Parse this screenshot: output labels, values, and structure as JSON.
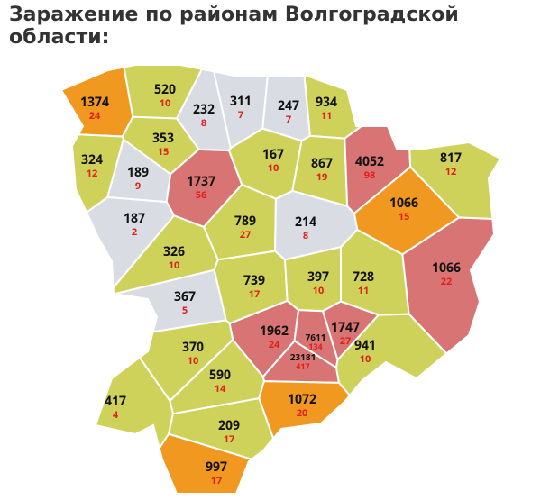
{
  "title": "Заражение по районам Волгоградской области:",
  "districts": [
    {
      "cases": 1374,
      "deaths": 24,
      "color": "#f0981f"
    },
    {
      "cases": 520,
      "deaths": 10,
      "color": "#cfd25a"
    },
    {
      "cases": 232,
      "deaths": 8,
      "color": "#d9dce3"
    },
    {
      "cases": 311,
      "deaths": 7,
      "color": "#d9dce3"
    },
    {
      "cases": 247,
      "deaths": 7,
      "color": "#d9dce3"
    },
    {
      "cases": 934,
      "deaths": 11,
      "color": "#cfd25a"
    },
    {
      "cases": 353,
      "deaths": 15,
      "color": "#cfd25a"
    },
    {
      "cases": 324,
      "deaths": 12,
      "color": "#cfd25a"
    },
    {
      "cases": 189,
      "deaths": 9,
      "color": "#d9dce3"
    },
    {
      "cases": 1737,
      "deaths": 56,
      "color": "#d97474"
    },
    {
      "cases": 167,
      "deaths": 10,
      "color": "#cfd25a"
    },
    {
      "cases": 867,
      "deaths": 19,
      "color": "#cfd25a"
    },
    {
      "cases": 4052,
      "deaths": 98,
      "color": "#d97474"
    },
    {
      "cases": 817,
      "deaths": 12,
      "color": "#cfd25a"
    },
    {
      "cases": 187,
      "deaths": 2,
      "color": "#d9dce3"
    },
    {
      "cases": 1066,
      "deaths": 15,
      "color": "#f0981f"
    },
    {
      "cases": 789,
      "deaths": 27,
      "color": "#cfd25a"
    },
    {
      "cases": 214,
      "deaths": 8,
      "color": "#d9dce3"
    },
    {
      "cases": 326,
      "deaths": 10,
      "color": "#cfd25a"
    },
    {
      "cases": 1066,
      "deaths": 22,
      "color": "#d97474"
    },
    {
      "cases": 739,
      "deaths": 17,
      "color": "#cfd25a"
    },
    {
      "cases": 397,
      "deaths": 10,
      "color": "#cfd25a"
    },
    {
      "cases": 728,
      "deaths": 11,
      "color": "#cfd25a"
    },
    {
      "cases": 367,
      "deaths": 5,
      "color": "#d9dce3"
    },
    {
      "cases": 1962,
      "deaths": 24,
      "color": "#d97474"
    },
    {
      "cases": 7611,
      "deaths": 134,
      "color": "#d97474"
    },
    {
      "cases": 1747,
      "deaths": 27,
      "color": "#d97474"
    },
    {
      "cases": 941,
      "deaths": 10,
      "color": "#cfd25a"
    },
    {
      "cases": 370,
      "deaths": 10,
      "color": "#cfd25a"
    },
    {
      "cases": 23181,
      "deaths": 417,
      "color": "#d97474"
    },
    {
      "cases": 590,
      "deaths": 14,
      "color": "#cfd25a"
    },
    {
      "cases": 417,
      "deaths": 4,
      "color": "#cfd25a"
    },
    {
      "cases": 1072,
      "deaths": 20,
      "color": "#f0981f"
    },
    {
      "cases": 209,
      "deaths": 17,
      "color": "#cfd25a"
    },
    {
      "cases": 997,
      "deaths": 17,
      "color": "#f0981f"
    }
  ]
}
